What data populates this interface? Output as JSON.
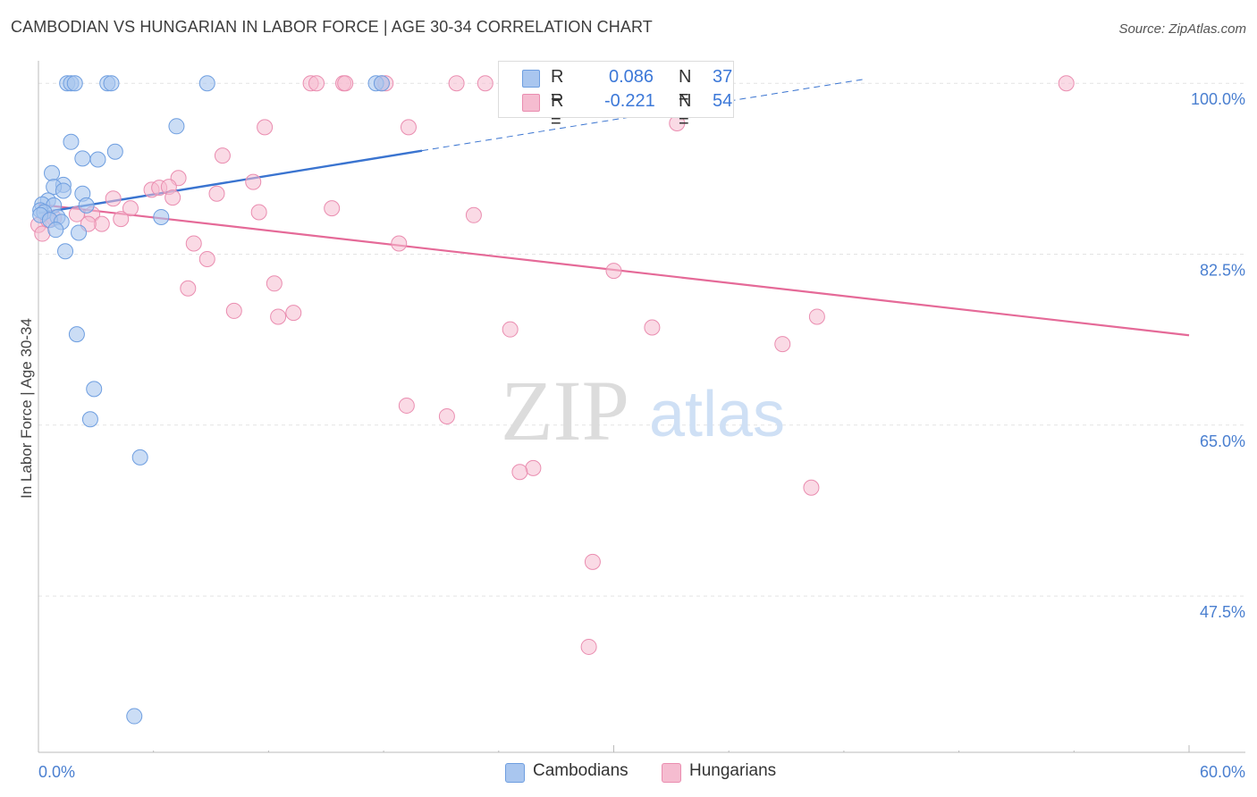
{
  "title": "CAMBODIAN VS HUNGARIAN IN LABOR FORCE | AGE 30-34 CORRELATION CHART",
  "source": "Source: ZipAtlas.com",
  "watermark": {
    "zip": "ZIP",
    "atlas": "atlas"
  },
  "legend": {
    "cambodians": {
      "r_label": "R =",
      "r_value": "0.086",
      "n_label": "N =",
      "n_value": "37"
    },
    "hungarians": {
      "r_label": "R =",
      "r_value": "-0.221",
      "n_label": "N =",
      "n_value": "54"
    }
  },
  "bottom_legend": {
    "cambodians": "Cambodians",
    "hungarians": "Hungarians"
  },
  "colors": {
    "cambodian_fill": "#a9c6ef",
    "cambodian_stroke": "#6e9ee0",
    "cambodian_line": "#3a74d0",
    "hungarian_fill": "#f5bcd0",
    "hungarian_stroke": "#ea8db0",
    "hungarian_line": "#e56a98",
    "grid": "#e3e3e3",
    "tick_text": "#4a7fd0"
  },
  "chart_data": {
    "type": "scatter",
    "title": "CAMBODIAN VS HUNGARIAN IN LABOR FORCE | AGE 30-34 CORRELATION CHART",
    "xlabel": "",
    "ylabel": "In Labor Force | Age 30-34",
    "xlim": [
      0,
      60
    ],
    "ylim": [
      31.5,
      101.3
    ],
    "x_tick_labels": [
      "0.0%",
      "60.0%"
    ],
    "y_ticks": [
      100.0,
      82.5,
      65.0,
      47.5
    ],
    "y_tick_labels": [
      "100.0%",
      "82.5%",
      "65.0%",
      "47.5%"
    ],
    "series": [
      {
        "name": "Cambodians",
        "points": [
          [
            1.5,
            100
          ],
          [
            1.7,
            100
          ],
          [
            1.9,
            100
          ],
          [
            3.6,
            100
          ],
          [
            3.8,
            100
          ],
          [
            8.8,
            100
          ],
          [
            17.6,
            100
          ],
          [
            17.9,
            100
          ],
          [
            7.2,
            95.6
          ],
          [
            1.7,
            94.0
          ],
          [
            4.0,
            93.0
          ],
          [
            2.3,
            92.3
          ],
          [
            3.1,
            92.2
          ],
          [
            0.7,
            90.8
          ],
          [
            1.3,
            89.6
          ],
          [
            0.8,
            89.4
          ],
          [
            1.3,
            89.0
          ],
          [
            2.3,
            88.7
          ],
          [
            0.5,
            88.0
          ],
          [
            0.2,
            87.6
          ],
          [
            0.8,
            87.5
          ],
          [
            2.5,
            87.5
          ],
          [
            0.1,
            87.0
          ],
          [
            0.3,
            86.8
          ],
          [
            0.1,
            86.5
          ],
          [
            1.0,
            86.3
          ],
          [
            6.4,
            86.3
          ],
          [
            0.6,
            86.0
          ],
          [
            1.2,
            85.8
          ],
          [
            0.9,
            85.0
          ],
          [
            2.1,
            84.7
          ],
          [
            1.4,
            82.8
          ],
          [
            2.0,
            74.3
          ],
          [
            2.9,
            68.7
          ],
          [
            2.7,
            65.6
          ],
          [
            5.3,
            61.7
          ],
          [
            5.0,
            35.2
          ]
        ],
        "trendline": {
          "x": [
            0,
            20
          ],
          "y": [
            86.7,
            93.1
          ],
          "dashed_x": [
            20,
            43
          ],
          "dashed_y": [
            93.1,
            100.4
          ]
        }
      },
      {
        "name": "Hungarians",
        "points": [
          [
            14.2,
            100
          ],
          [
            14.5,
            100
          ],
          [
            15.9,
            100
          ],
          [
            16.0,
            100
          ],
          [
            17.9,
            100
          ],
          [
            18.1,
            100
          ],
          [
            21.8,
            100
          ],
          [
            23.3,
            100
          ],
          [
            53.6,
            100
          ],
          [
            33.3,
            95.9
          ],
          [
            11.8,
            95.5
          ],
          [
            19.3,
            95.5
          ],
          [
            9.6,
            92.6
          ],
          [
            7.3,
            90.3
          ],
          [
            11.2,
            89.9
          ],
          [
            5.9,
            89.1
          ],
          [
            6.3,
            89.3
          ],
          [
            6.8,
            89.4
          ],
          [
            9.3,
            88.7
          ],
          [
            3.9,
            88.2
          ],
          [
            7.0,
            88.3
          ],
          [
            4.8,
            87.2
          ],
          [
            15.3,
            87.2
          ],
          [
            11.5,
            86.8
          ],
          [
            22.7,
            86.5
          ],
          [
            2.0,
            86.6
          ],
          [
            2.8,
            86.6
          ],
          [
            4.3,
            86.1
          ],
          [
            0.8,
            86.2
          ],
          [
            3.3,
            85.6
          ],
          [
            2.6,
            85.6
          ],
          [
            8.1,
            83.6
          ],
          [
            18.8,
            83.6
          ],
          [
            8.8,
            82.0
          ],
          [
            30.0,
            80.8
          ],
          [
            12.3,
            79.5
          ],
          [
            7.8,
            79.0
          ],
          [
            10.2,
            76.7
          ],
          [
            13.3,
            76.5
          ],
          [
            12.5,
            76.1
          ],
          [
            40.6,
            76.1
          ],
          [
            32.0,
            75.0
          ],
          [
            24.6,
            74.8
          ],
          [
            38.8,
            73.3
          ],
          [
            19.2,
            67.0
          ],
          [
            21.3,
            65.9
          ],
          [
            25.8,
            60.6
          ],
          [
            25.1,
            60.2
          ],
          [
            40.3,
            58.6
          ],
          [
            28.9,
            51.0
          ],
          [
            28.7,
            42.3
          ],
          [
            0.0,
            85.5
          ],
          [
            0.2,
            84.6
          ],
          [
            0.5,
            86.0
          ]
        ],
        "trendline": {
          "x": [
            0,
            60
          ],
          "y": [
            87.6,
            74.2
          ]
        }
      }
    ]
  }
}
